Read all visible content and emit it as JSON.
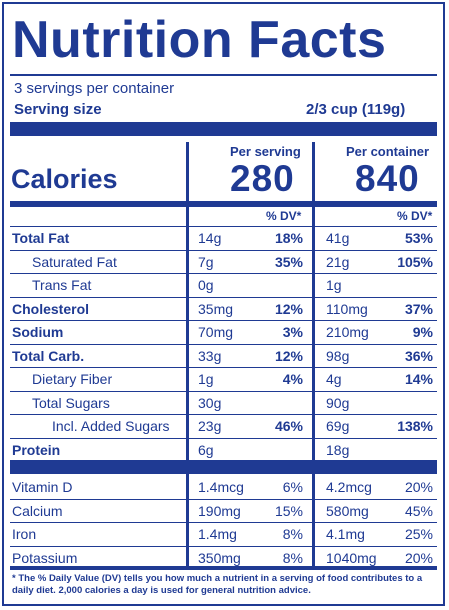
{
  "title": "Nutrition Facts",
  "servings": "3 servings per container",
  "serving_size_label": "Serving size",
  "serving_size_value": "2/3 cup (119g)",
  "calories_label": "Calories",
  "per_serving_label": "Per serving",
  "per_container_label": "Per container",
  "calories_serving": "280",
  "calories_container": "840",
  "dv_header": "% DV*",
  "nutrients": [
    {
      "name": "Total Fat",
      "bold": true,
      "s_amt": "14g",
      "s_dv": "18%",
      "c_amt": "41g",
      "c_dv": "53%"
    },
    {
      "name": "Saturated Fat",
      "bold": false,
      "s_amt": "7g",
      "s_dv": "35%",
      "c_amt": "21g",
      "c_dv": "105%"
    },
    {
      "name": "Trans Fat",
      "bold": false,
      "s_amt": "0g",
      "s_dv": "",
      "c_amt": "1g",
      "c_dv": ""
    },
    {
      "name": "Cholesterol",
      "bold": true,
      "s_amt": "35mg",
      "s_dv": "12%",
      "c_amt": "110mg",
      "c_dv": "37%"
    },
    {
      "name": "Sodium",
      "bold": true,
      "s_amt": "70mg",
      "s_dv": "3%",
      "c_amt": "210mg",
      "c_dv": "9%"
    },
    {
      "name": "Total Carb.",
      "bold": true,
      "s_amt": "33g",
      "s_dv": "12%",
      "c_amt": "98g",
      "c_dv": "36%"
    },
    {
      "name": "Dietary Fiber",
      "bold": false,
      "s_amt": "1g",
      "s_dv": "4%",
      "c_amt": "4g",
      "c_dv": "14%"
    },
    {
      "name": "Total Sugars",
      "bold": false,
      "s_amt": "30g",
      "s_dv": "",
      "c_amt": "90g",
      "c_dv": ""
    },
    {
      "name": "Incl. Added Sugars",
      "bold": false,
      "s_amt": "23g",
      "s_dv": "46%",
      "c_amt": "69g",
      "c_dv": "138%"
    },
    {
      "name": "Protein",
      "bold": true,
      "s_amt": "6g",
      "s_dv": "",
      "c_amt": "18g",
      "c_dv": ""
    }
  ],
  "vitamins": [
    {
      "name": "Vitamin D",
      "s_amt": "1.4mcg",
      "s_dv": "6%",
      "c_amt": "4.2mcg",
      "c_dv": "20%"
    },
    {
      "name": "Calcium",
      "s_amt": "190mg",
      "s_dv": "15%",
      "c_amt": "580mg",
      "c_dv": "45%"
    },
    {
      "name": "Iron",
      "s_amt": "1.4mg",
      "s_dv": "8%",
      "c_amt": "4.1mg",
      "c_dv": "25%"
    },
    {
      "name": "Potassium",
      "s_amt": "350mg",
      "s_dv": "8%",
      "c_amt": "1040mg",
      "c_dv": "20%"
    }
  ],
  "footnote_line1": "* The % Daily Value (DV) tells you how much a nutrient in a serving of food contributes to a",
  "footnote_line2": "daily diet. 2,000 calories a day is used for general nutrition advice.",
  "colors": {
    "ink": "#1f3a93",
    "background": "#ffffff"
  }
}
